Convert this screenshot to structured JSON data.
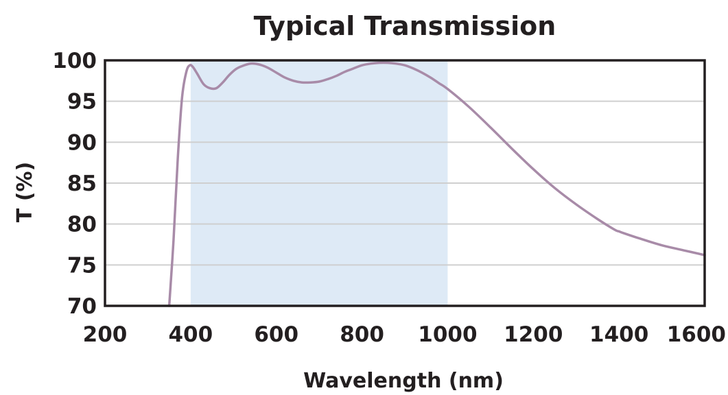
{
  "chart_data": {
    "type": "line",
    "title": "Typical Transmission",
    "xlabel": "Wavelength (nm)",
    "ylabel": "T (%)",
    "xlim": [
      200,
      1600
    ],
    "ylim": [
      70,
      100
    ],
    "x_ticks": [
      "200",
      "400",
      "600",
      "800",
      "1000",
      "1200",
      "1400",
      "1600"
    ],
    "y_ticks": [
      "70",
      "75",
      "80",
      "85",
      "90",
      "95",
      "100"
    ],
    "grid": "horizontal",
    "highlight_band": {
      "x": [
        400,
        1000
      ],
      "color": "#deeaf6"
    },
    "line_color": "#a88ba8",
    "series": [
      {
        "x": [
          350,
          360,
          370,
          380,
          390,
          398,
          405,
          415,
          430,
          445,
          460,
          475,
          490,
          505,
          520,
          540,
          560,
          580,
          600,
          620,
          640,
          660,
          680,
          700,
          720,
          740,
          760,
          780,
          800,
          820,
          840,
          860,
          880,
          900,
          920,
          940,
          960,
          980,
          1000,
          1050,
          1100,
          1150,
          1200,
          1250,
          1300,
          1350,
          1390,
          1400,
          1410,
          1450,
          1500,
          1550,
          1600
        ],
        "y": [
          70.0,
          78.0,
          88.0,
          95.5,
          98.6,
          99.4,
          99.2,
          98.4,
          97.1,
          96.6,
          96.6,
          97.3,
          98.2,
          98.9,
          99.3,
          99.6,
          99.5,
          99.1,
          98.5,
          97.9,
          97.5,
          97.3,
          97.3,
          97.4,
          97.7,
          98.1,
          98.6,
          99.0,
          99.4,
          99.6,
          99.7,
          99.7,
          99.6,
          99.4,
          99.0,
          98.5,
          97.9,
          97.2,
          96.5,
          94.3,
          91.8,
          89.2,
          86.7,
          84.4,
          82.4,
          80.6,
          79.3,
          79.1,
          78.9,
          78.2,
          77.4,
          76.8,
          76.2
        ]
      }
    ]
  }
}
